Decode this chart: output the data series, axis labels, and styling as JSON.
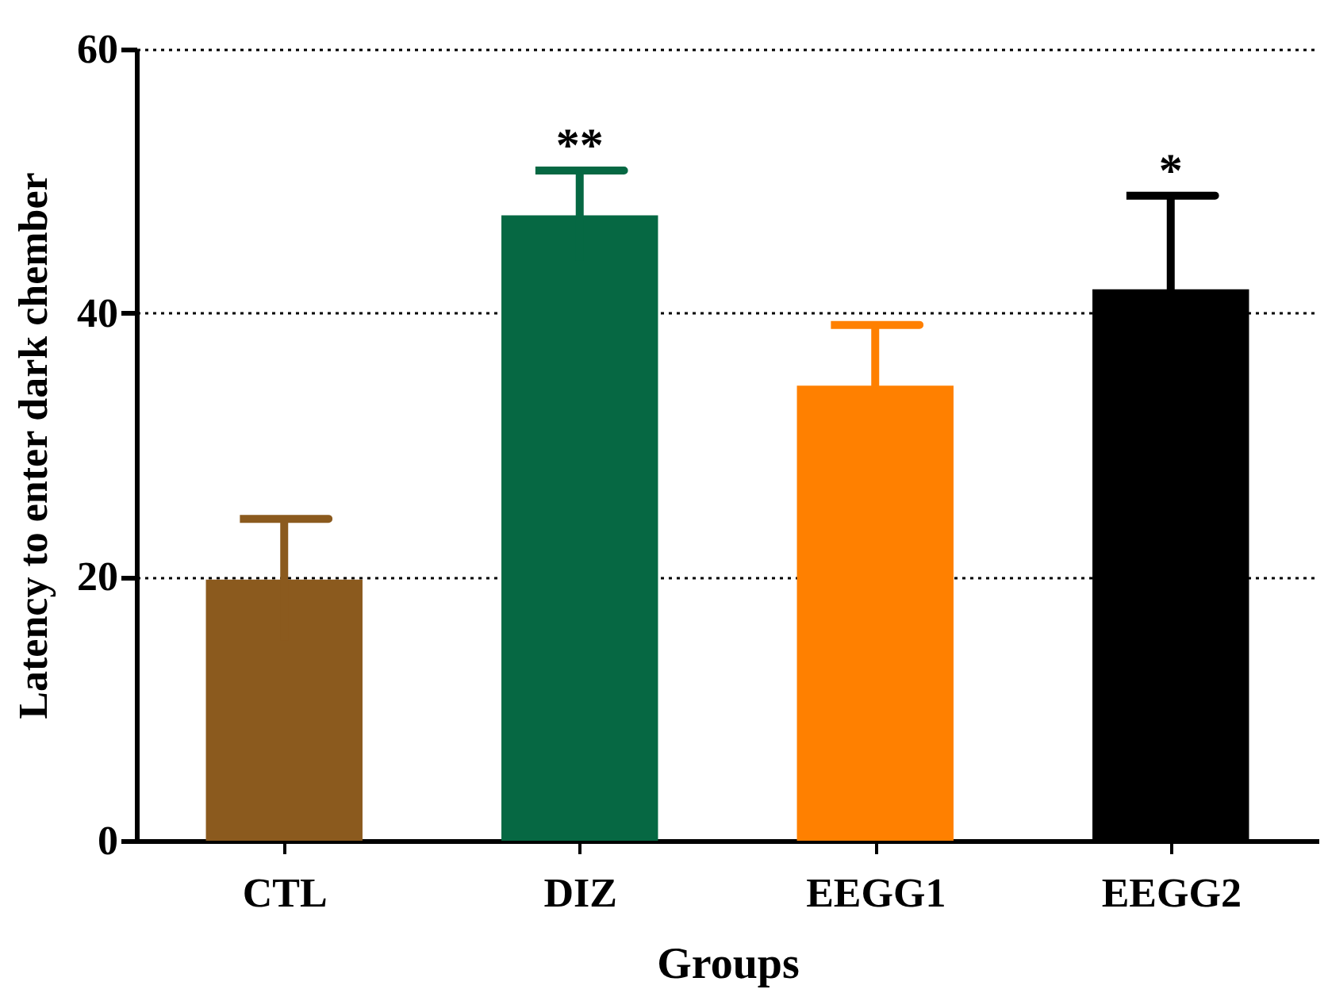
{
  "chart_data": {
    "type": "bar",
    "xlabel": "Groups",
    "ylabel": "Latency to enter dark chember",
    "categories": [
      "CTL",
      "DIZ",
      "EEGG1",
      "EEGG2"
    ],
    "values": [
      19.8,
      47.4,
      34.5,
      41.8
    ],
    "errors": [
      4.6,
      3.4,
      4.6,
      7.1
    ],
    "colors": [
      "#8b5a1e",
      "#066843",
      "#ff8000",
      "#000000"
    ],
    "ylim": [
      0,
      60
    ],
    "yticks": [
      0,
      20,
      40,
      60
    ],
    "grid": "y",
    "line_style": "dotted",
    "annotations": [
      "**",
      "*"
    ]
  }
}
